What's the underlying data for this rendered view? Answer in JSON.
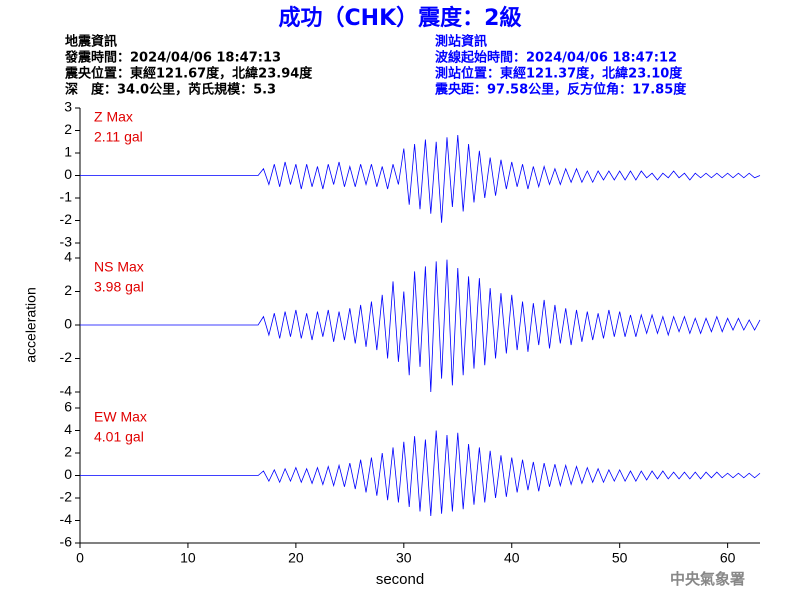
{
  "header": {
    "title": "成功（CHK）震度：2級",
    "left": [
      "地震資訊",
      "發震時間：2024/04/06 18:47:13",
      "震央位置：東經121.67度，北緯23.94度",
      "深　度：34.0公里，芮氏規模：5.3"
    ],
    "right": [
      "測站資訊",
      "波線起始時間：2024/04/06 18:47:12",
      "測站位置：東經121.37度，北緯23.10度",
      "震央距：97.58公里，反方位角：17.85度"
    ],
    "footer": "中央氣象署"
  },
  "chart_data": [
    {
      "type": "line",
      "max_label": "Z Max",
      "max_value": "2.11 gal",
      "color": "#0000ff",
      "label_color": "#e00000",
      "xlim": [
        0,
        63
      ],
      "ylim": [
        -3,
        3
      ],
      "yticks": [
        3,
        2,
        1,
        0,
        -1,
        -2,
        -3
      ],
      "x": [
        0,
        0.5,
        1,
        1.5,
        2,
        2.5,
        3,
        3.5,
        4,
        4.5,
        5,
        5.5,
        6,
        6.5,
        7,
        7.5,
        8,
        8.5,
        9,
        9.5,
        10,
        10.5,
        11,
        11.5,
        12,
        12.5,
        13,
        13.5,
        14,
        14.5,
        15,
        15.5,
        16,
        16.5,
        17,
        17.5,
        18,
        18.5,
        19,
        19.5,
        20,
        20.5,
        21,
        21.5,
        22,
        22.5,
        23,
        23.5,
        24,
        24.5,
        25,
        25.5,
        26,
        26.5,
        27,
        27.5,
        28,
        28.5,
        29,
        29.5,
        30,
        30.5,
        31,
        31.5,
        32,
        32.5,
        33,
        33.5,
        34,
        34.5,
        35,
        35.5,
        36,
        36.5,
        37,
        37.5,
        38,
        38.5,
        39,
        39.5,
        40,
        40.5,
        41,
        41.5,
        42,
        42.5,
        43,
        43.5,
        44,
        44.5,
        45,
        45.5,
        46,
        46.5,
        47,
        47.5,
        48,
        48.5,
        49,
        49.5,
        50,
        50.5,
        51,
        51.5,
        52,
        52.5,
        53,
        53.5,
        54,
        54.5,
        55,
        55.5,
        56,
        56.5,
        57,
        57.5,
        58,
        58.5,
        59,
        59.5,
        60,
        60.5,
        61,
        61.5,
        62,
        62.5,
        63
      ],
      "values": [
        0,
        0,
        0,
        0,
        0,
        0,
        0,
        0,
        0,
        0,
        0,
        0,
        0,
        0,
        0,
        0,
        0,
        0,
        0,
        0,
        0,
        0,
        0,
        0,
        0,
        0,
        0,
        0,
        0,
        0,
        0,
        0,
        0,
        0,
        0.3,
        -0.4,
        0.5,
        -0.5,
        0.6,
        -0.4,
        0.5,
        -0.6,
        0.5,
        -0.5,
        0.4,
        -0.6,
        0.5,
        -0.4,
        0.6,
        -0.5,
        0.4,
        -0.5,
        0.5,
        -0.4,
        0.5,
        -0.5,
        0.4,
        -0.6,
        0.5,
        -0.4,
        1.2,
        -1.3,
        1.4,
        -1.5,
        1.6,
        -1.7,
        1.5,
        -2.1,
        1.7,
        -1.4,
        1.8,
        -1.6,
        1.4,
        -1.2,
        1.1,
        -1.0,
        0.8,
        -0.9,
        0.7,
        -0.6,
        0.6,
        -0.5,
        0.5,
        -0.6,
        0.4,
        -0.5,
        0.4,
        -0.4,
        0.3,
        -0.4,
        0.3,
        -0.3,
        0.3,
        -0.3,
        0.2,
        -0.3,
        0.2,
        -0.2,
        0.2,
        -0.2,
        0.2,
        -0.2,
        0.2,
        -0.2,
        0.2,
        -0.1,
        0.1,
        -0.2,
        0.1,
        -0.1,
        0.2,
        -0.1,
        0.1,
        -0.2,
        0.1,
        -0.1,
        0.1,
        -0.1,
        0.1,
        -0.1,
        0.1,
        -0.1,
        0.1,
        -0.1,
        0.1,
        -0.1,
        0
      ]
    },
    {
      "type": "line",
      "max_label": "NS Max",
      "max_value": "3.98 gal",
      "color": "#0000ff",
      "label_color": "#e00000",
      "ylabel": "acceleration",
      "xlim": [
        0,
        63
      ],
      "ylim": [
        -4,
        4
      ],
      "yticks": [
        4,
        2,
        0,
        -2,
        -4
      ],
      "x": [
        0,
        0.5,
        1,
        1.5,
        2,
        2.5,
        3,
        3.5,
        4,
        4.5,
        5,
        5.5,
        6,
        6.5,
        7,
        7.5,
        8,
        8.5,
        9,
        9.5,
        10,
        10.5,
        11,
        11.5,
        12,
        12.5,
        13,
        13.5,
        14,
        14.5,
        15,
        15.5,
        16,
        16.5,
        17,
        17.5,
        18,
        18.5,
        19,
        19.5,
        20,
        20.5,
        21,
        21.5,
        22,
        22.5,
        23,
        23.5,
        24,
        24.5,
        25,
        25.5,
        26,
        26.5,
        27,
        27.5,
        28,
        28.5,
        29,
        29.5,
        30,
        30.5,
        31,
        31.5,
        32,
        32.5,
        33,
        33.5,
        34,
        34.5,
        35,
        35.5,
        36,
        36.5,
        37,
        37.5,
        38,
        38.5,
        39,
        39.5,
        40,
        40.5,
        41,
        41.5,
        42,
        42.5,
        43,
        43.5,
        44,
        44.5,
        45,
        45.5,
        46,
        46.5,
        47,
        47.5,
        48,
        48.5,
        49,
        49.5,
        50,
        50.5,
        51,
        51.5,
        52,
        52.5,
        53,
        53.5,
        54,
        54.5,
        55,
        55.5,
        56,
        56.5,
        57,
        57.5,
        58,
        58.5,
        59,
        59.5,
        60,
        60.5,
        61,
        61.5,
        62,
        62.5,
        63
      ],
      "values": [
        0,
        0,
        0,
        0,
        0,
        0,
        0,
        0,
        0,
        0,
        0,
        0,
        0,
        0,
        0,
        0,
        0,
        0,
        0,
        0,
        0,
        0,
        0,
        0,
        0,
        0,
        0,
        0,
        0,
        0,
        0,
        0,
        0,
        0,
        0.5,
        -0.6,
        0.7,
        -0.8,
        0.8,
        -0.7,
        0.9,
        -0.8,
        0.7,
        -0.9,
        0.8,
        -0.7,
        0.9,
        -1.0,
        0.8,
        -0.9,
        1.0,
        -1.1,
        1.2,
        -1.3,
        1.4,
        -1.5,
        1.8,
        -2.0,
        2.6,
        -2.2,
        2.0,
        -3.0,
        3.2,
        -2.5,
        3.5,
        -4.0,
        3.8,
        -3.2,
        3.9,
        -3.6,
        3.4,
        -3.0,
        2.9,
        -2.6,
        2.8,
        -2.4,
        2.2,
        -2.0,
        1.9,
        -1.7,
        1.8,
        -1.5,
        1.4,
        -1.6,
        1.3,
        -1.2,
        1.5,
        -1.4,
        1.2,
        -1.1,
        1.0,
        -1.2,
        0.9,
        -1.0,
        0.8,
        -0.9,
        0.7,
        -0.8,
        0.9,
        -0.7,
        0.8,
        -0.7,
        0.6,
        -0.7,
        0.6,
        -0.5,
        0.6,
        -0.5,
        0.5,
        -0.6,
        0.5,
        -0.4,
        0.5,
        -0.5,
        0.4,
        -0.5,
        0.4,
        -0.4,
        0.5,
        -0.4,
        0.4,
        -0.3,
        0.4,
        -0.3,
        0.3,
        -0.3,
        0.3
      ]
    },
    {
      "type": "line",
      "max_label": "EW Max",
      "max_value": "4.01 gal",
      "color": "#0000ff",
      "label_color": "#e00000",
      "xlabel": "second",
      "xlim": [
        0,
        63
      ],
      "xticks": [
        0,
        10,
        20,
        30,
        40,
        50,
        60
      ],
      "ylim": [
        -6,
        6
      ],
      "yticks": [
        6,
        4,
        2,
        0,
        -2,
        -4,
        -6
      ],
      "x": [
        0,
        0.5,
        1,
        1.5,
        2,
        2.5,
        3,
        3.5,
        4,
        4.5,
        5,
        5.5,
        6,
        6.5,
        7,
        7.5,
        8,
        8.5,
        9,
        9.5,
        10,
        10.5,
        11,
        11.5,
        12,
        12.5,
        13,
        13.5,
        14,
        14.5,
        15,
        15.5,
        16,
        16.5,
        17,
        17.5,
        18,
        18.5,
        19,
        19.5,
        20,
        20.5,
        21,
        21.5,
        22,
        22.5,
        23,
        23.5,
        24,
        24.5,
        25,
        25.5,
        26,
        26.5,
        27,
        27.5,
        28,
        28.5,
        29,
        29.5,
        30,
        30.5,
        31,
        31.5,
        32,
        32.5,
        33,
        33.5,
        34,
        34.5,
        35,
        35.5,
        36,
        36.5,
        37,
        37.5,
        38,
        38.5,
        39,
        39.5,
        40,
        40.5,
        41,
        41.5,
        42,
        42.5,
        43,
        43.5,
        44,
        44.5,
        45,
        45.5,
        46,
        46.5,
        47,
        47.5,
        48,
        48.5,
        49,
        49.5,
        50,
        50.5,
        51,
        51.5,
        52,
        52.5,
        53,
        53.5,
        54,
        54.5,
        55,
        55.5,
        56,
        56.5,
        57,
        57.5,
        58,
        58.5,
        59,
        59.5,
        60,
        60.5,
        61,
        61.5,
        62,
        62.5,
        63
      ],
      "values": [
        0,
        0,
        0,
        0,
        0,
        0,
        0,
        0,
        0,
        0,
        0,
        0,
        0,
        0,
        0,
        0,
        0,
        0,
        0,
        0,
        0,
        0,
        0,
        0,
        0,
        0,
        0,
        0,
        0,
        0,
        0,
        0,
        0,
        0,
        0.4,
        -0.5,
        0.5,
        -0.6,
        0.6,
        -0.5,
        0.7,
        -0.6,
        0.6,
        -0.7,
        0.7,
        -0.8,
        0.8,
        -0.9,
        0.9,
        -1.0,
        1.1,
        -1.2,
        1.4,
        -1.5,
        1.6,
        -1.8,
        2.0,
        -2.2,
        2.5,
        -2.4,
        3.0,
        -2.8,
        3.5,
        -3.2,
        3.2,
        -3.6,
        4.0,
        -3.4,
        3.6,
        -3.2,
        3.8,
        -3.0,
        2.8,
        -2.6,
        2.5,
        -2.4,
        2.2,
        -2.0,
        1.8,
        -1.9,
        1.6,
        -1.5,
        1.4,
        -1.3,
        1.2,
        -1.4,
        1.1,
        -1.0,
        1.0,
        -0.9,
        0.9,
        -0.8,
        0.8,
        -0.7,
        0.7,
        -0.6,
        0.6,
        -0.6,
        0.5,
        -0.5,
        0.5,
        -0.5,
        0.4,
        -0.5,
        0.4,
        -0.4,
        0.4,
        -0.3,
        0.4,
        -0.3,
        0.3,
        -0.3,
        0.3,
        -0.3,
        0.3,
        -0.3,
        0.3,
        -0.2,
        0.3,
        -0.2,
        0.2,
        -0.2,
        0.2,
        -0.2,
        0.2,
        -0.2,
        0.2
      ]
    }
  ]
}
